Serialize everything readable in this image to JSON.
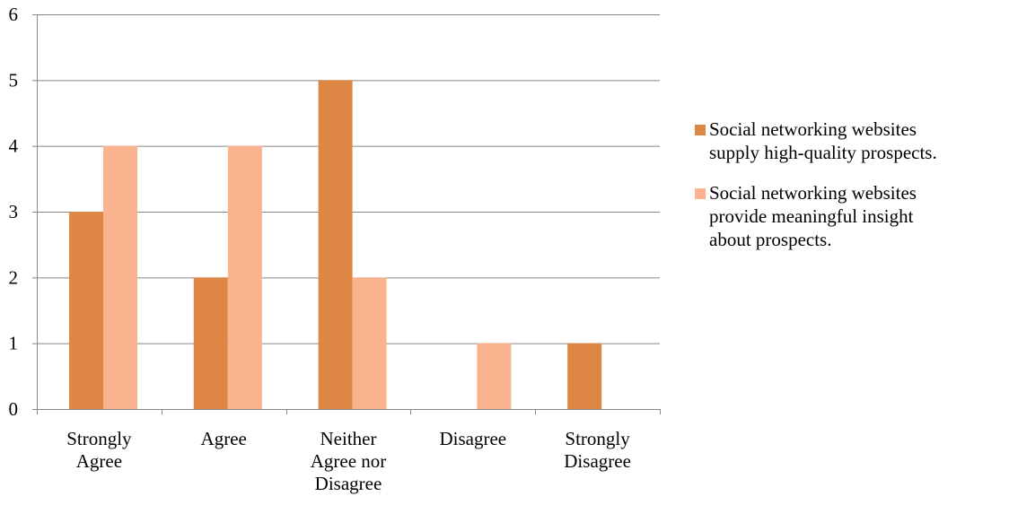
{
  "chart_data": {
    "type": "bar",
    "categories": [
      [
        "Strongly",
        "Agree"
      ],
      [
        "Agree"
      ],
      [
        "Neither",
        "Agree nor",
        "Disagree"
      ],
      [
        "Disagree"
      ],
      [
        "Strongly",
        "Disagree"
      ]
    ],
    "series": [
      {
        "name": "Social networking websites supply high-quality prospects.",
        "values": [
          3,
          2,
          5,
          0,
          1
        ],
        "color": "#DE8644"
      },
      {
        "name": "Social networking websites provide meaningful insight about prospects.",
        "values": [
          4,
          4,
          2,
          1,
          0
        ],
        "color": "#F9B38E"
      }
    ],
    "ylim": [
      0,
      6
    ],
    "yticks": [
      0,
      1,
      2,
      3,
      4,
      5,
      6
    ],
    "grid": true,
    "legend_position": "right"
  },
  "legend": [
    {
      "lines": [
        "Social networking websites",
        "supply high-quality prospects."
      ],
      "color": "#DE8644"
    },
    {
      "lines": [
        "Social networking websites",
        "provide meaningful insight",
        "about prospects."
      ],
      "color": "#F9B38E"
    }
  ],
  "colors": {
    "gridline": "#868686",
    "axis": "#868686"
  }
}
